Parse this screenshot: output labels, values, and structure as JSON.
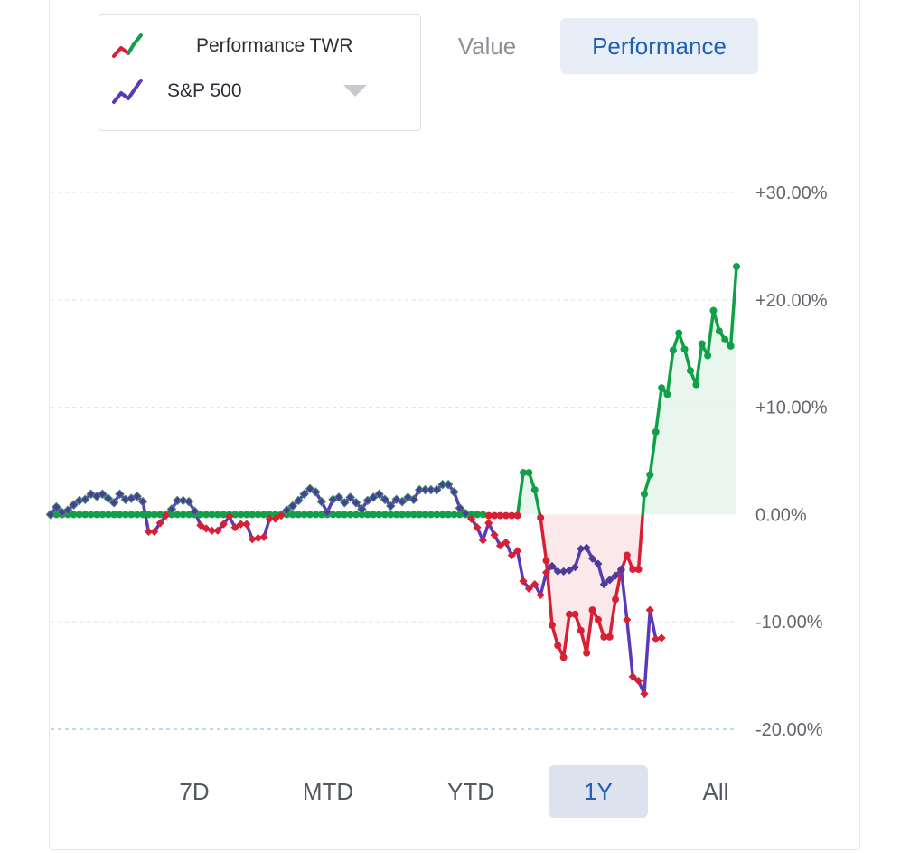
{
  "legend": {
    "items": [
      {
        "label": "Performance TWR",
        "icon": "red-green-line-icon"
      },
      {
        "label": "S&P 500",
        "icon": "purple-line-icon"
      }
    ]
  },
  "modes": {
    "value": "Value",
    "performance": "Performance",
    "selected": "Performance"
  },
  "ranges": {
    "items": [
      "7D",
      "MTD",
      "YTD",
      "1Y",
      "All"
    ],
    "selected": "1Y"
  },
  "colors": {
    "positive": "#10a048",
    "negative": "#d81f34",
    "benchmark": "#5a3ab8",
    "positive_fill": "#e6f5ec",
    "negative_fill": "#fbe6e8",
    "grid": "#dde6ee",
    "tick_label": "#62666d"
  },
  "chart_data": {
    "type": "line",
    "ylim": [
      -20,
      30
    ],
    "yticks": [
      30,
      20,
      10,
      0,
      -10,
      -20
    ],
    "ytick_labels": [
      "+30.00%",
      "+20.00%",
      "+10.00%",
      "0.00%",
      "-10.00%",
      "-20.00%"
    ],
    "grid": true,
    "series": [
      {
        "name": "Performance TWR",
        "values": [
          0,
          0,
          0,
          0,
          0,
          0,
          0,
          0,
          0,
          0,
          0,
          0,
          0,
          0,
          0,
          0,
          0,
          0,
          0,
          0,
          0,
          0,
          0,
          0,
          0,
          0,
          0,
          0,
          0,
          0,
          0,
          0,
          0,
          0,
          0,
          0,
          0,
          0,
          0,
          0,
          0,
          0,
          0,
          0,
          0,
          0,
          0,
          0,
          0,
          0,
          0,
          0,
          0,
          0,
          0,
          0,
          0,
          0,
          0,
          0,
          0,
          0,
          0,
          0,
          0,
          0,
          0,
          0,
          0,
          0,
          0,
          0,
          0,
          0,
          0,
          0,
          -0.1,
          -0.1,
          -0.1,
          -0.1,
          -0.1,
          -0.1,
          3.9,
          3.9,
          2.3,
          -0.3,
          -4.3,
          -10.3,
          -12.2,
          -13.3,
          -9.3,
          -9.3,
          -10.8,
          -12.9,
          -8.9,
          -9.8,
          -11.4,
          -11.4,
          -7.9,
          -5.2,
          -3.8,
          -5.1,
          -5.1,
          1.9,
          3.7,
          7.7,
          11.8,
          11.2,
          15.3,
          16.9,
          15.4,
          13.4,
          12.1,
          15.9,
          14.8,
          19.0,
          17.1,
          16.3,
          15.7,
          23.1
        ]
      },
      {
        "name": "S&P 500",
        "values": [
          0,
          0.7,
          0.2,
          0.4,
          0.9,
          1.3,
          1.4,
          1.9,
          1.7,
          1.9,
          1.5,
          1.1,
          1.9,
          1.4,
          1.5,
          1.7,
          1.2,
          -1.6,
          -1.6,
          -0.8,
          -0.1,
          0.5,
          1.3,
          1.3,
          1.2,
          0.3,
          -1.0,
          -1.3,
          -1.5,
          -1.5,
          -0.9,
          -0.2,
          -1.2,
          -0.9,
          -0.9,
          -2.3,
          -2.2,
          -2.1,
          -0.4,
          -0.4,
          -0.1,
          0.4,
          0.8,
          1.3,
          1.9,
          2.4,
          2.1,
          1.2,
          0.2,
          1.4,
          1.6,
          1.1,
          1.6,
          1.1,
          0.5,
          1.3,
          1.6,
          1.9,
          1.4,
          0.8,
          1.4,
          1.2,
          1.6,
          1.4,
          2.3,
          2.3,
          2.3,
          2.3,
          2.8,
          2.8,
          2.1,
          0.6,
          0.1,
          -0.4,
          -1.2,
          -2.4,
          -0.8,
          -1.9,
          -2.9,
          -2.6,
          -3.8,
          -3.4,
          -6.2,
          -6.9,
          -6.5,
          -7.5,
          -5.4,
          -4.8,
          -5.3,
          -5.3,
          -5.2,
          -4.9,
          -3.2,
          -3.1,
          -4.1,
          -4.6,
          -6.5,
          -6.1,
          -5.7,
          -5.1,
          -9.8,
          -15.1,
          -15.5,
          -16.7,
          -8.9,
          -11.6,
          -11.5
        ]
      }
    ]
  }
}
